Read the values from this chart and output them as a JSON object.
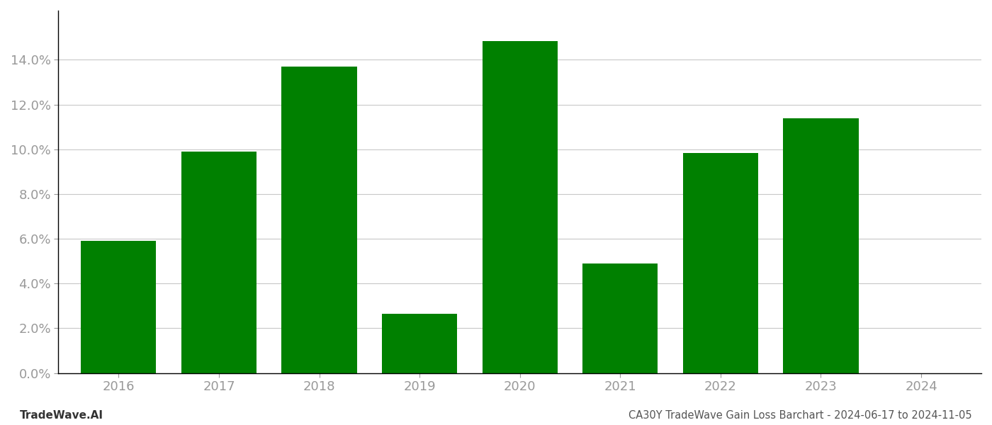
{
  "categories": [
    "2016",
    "2017",
    "2018",
    "2019",
    "2020",
    "2021",
    "2022",
    "2023",
    "2024"
  ],
  "values": [
    0.059,
    0.099,
    0.137,
    0.0265,
    0.1485,
    0.049,
    0.0985,
    0.114,
    0.0
  ],
  "bar_color": "#008000",
  "background_color": "#ffffff",
  "grid_color": "#c8c8c8",
  "spine_color": "#000000",
  "tick_label_color": "#999999",
  "title_text": "CA30Y TradeWave Gain Loss Barchart - 2024-06-17 to 2024-11-05",
  "watermark_text": "TradeWave.AI",
  "title_fontsize": 10.5,
  "watermark_fontsize": 11,
  "ylim": [
    0,
    0.162
  ],
  "ytick_values": [
    0.0,
    0.02,
    0.04,
    0.06,
    0.08,
    0.1,
    0.12,
    0.14
  ],
  "bar_width": 0.75,
  "tick_label_fontsize": 13
}
